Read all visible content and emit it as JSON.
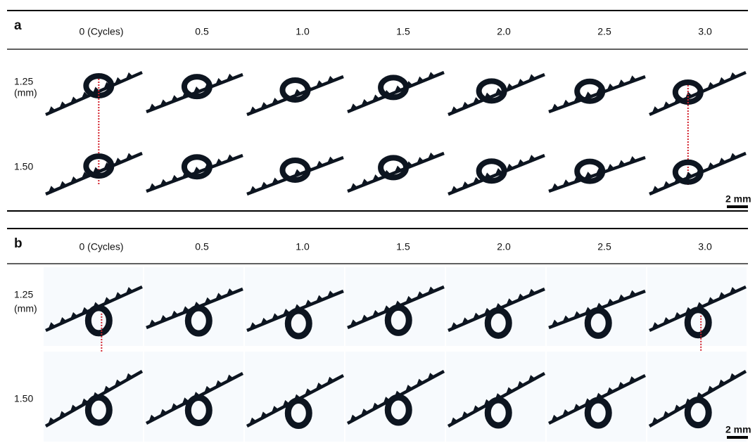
{
  "panels": [
    {
      "label": "a",
      "columns": [
        "0 (Cycles)",
        "0.5",
        "1.0",
        "1.5",
        "2.0",
        "2.5",
        "3.0"
      ],
      "rows": [
        {
          "label": "1.25",
          "unit": "(mm)"
        },
        {
          "label": "1.50"
        }
      ],
      "scale_bar": "2 mm"
    },
    {
      "label": "b",
      "columns": [
        "0 (Cycles)",
        "0.5",
        "1.0",
        "1.5",
        "2.0",
        "2.5",
        "3.0"
      ],
      "rows": [
        {
          "label": "1.25",
          "unit": "(mm)"
        },
        {
          "label": "1.50"
        }
      ],
      "scale_bar": "2 mm"
    }
  ]
}
